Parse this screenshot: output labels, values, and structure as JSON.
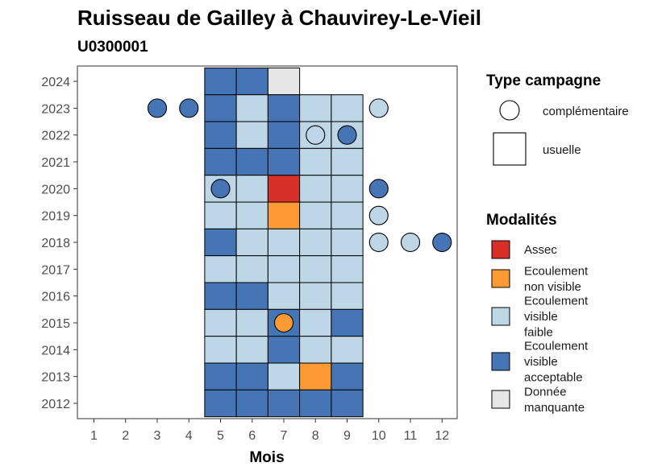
{
  "chart_data": {
    "type": "heatmap",
    "title": "Ruisseau de Gailley à Chauvirey-Le-Vieil",
    "subtitle": "U0300001",
    "xlabel": "Mois",
    "ylabel": "",
    "x_ticks": [
      1,
      2,
      3,
      4,
      5,
      6,
      7,
      8,
      9,
      10,
      11,
      12
    ],
    "y_ticks": [
      2012,
      2013,
      2014,
      2015,
      2016,
      2017,
      2018,
      2019,
      2020,
      2021,
      2022,
      2023,
      2024
    ],
    "legend_type": {
      "title": "Type campagne",
      "items": [
        {
          "key": "complementaire",
          "label": "complémentaire",
          "shape": "circle"
        },
        {
          "key": "usuelle",
          "label": "usuelle",
          "shape": "square"
        }
      ]
    },
    "legend_modalites": {
      "title": "Modalités",
      "items": [
        {
          "key": "assec",
          "lines": [
            "Assec"
          ],
          "color": "#d73027"
        },
        {
          "key": "nv",
          "lines": [
            "Ecoulement",
            "non visible"
          ],
          "color": "#fd9a33"
        },
        {
          "key": "vf",
          "lines": [
            "Ecoulement",
            "visible",
            "faible"
          ],
          "color": "#bdd7e7"
        },
        {
          "key": "va",
          "lines": [
            "Ecoulement",
            "visible",
            "acceptable"
          ],
          "color": "#4575b4"
        },
        {
          "key": "dm",
          "lines": [
            "Donnée",
            "manquante"
          ],
          "color": "#e6e6e6"
        }
      ]
    },
    "usuelle": [
      {
        "year": 2024,
        "month": 5,
        "mod": "va"
      },
      {
        "year": 2024,
        "month": 6,
        "mod": "va"
      },
      {
        "year": 2024,
        "month": 7,
        "mod": "dm"
      },
      {
        "year": 2023,
        "month": 5,
        "mod": "va"
      },
      {
        "year": 2023,
        "month": 6,
        "mod": "vf"
      },
      {
        "year": 2023,
        "month": 7,
        "mod": "va"
      },
      {
        "year": 2023,
        "month": 8,
        "mod": "vf"
      },
      {
        "year": 2023,
        "month": 9,
        "mod": "vf"
      },
      {
        "year": 2022,
        "month": 5,
        "mod": "va"
      },
      {
        "year": 2022,
        "month": 6,
        "mod": "vf"
      },
      {
        "year": 2022,
        "month": 7,
        "mod": "va"
      },
      {
        "year": 2022,
        "month": 8,
        "mod": "vf"
      },
      {
        "year": 2022,
        "month": 9,
        "mod": "vf"
      },
      {
        "year": 2021,
        "month": 5,
        "mod": "va"
      },
      {
        "year": 2021,
        "month": 6,
        "mod": "va"
      },
      {
        "year": 2021,
        "month": 7,
        "mod": "va"
      },
      {
        "year": 2021,
        "month": 8,
        "mod": "vf"
      },
      {
        "year": 2021,
        "month": 9,
        "mod": "vf"
      },
      {
        "year": 2020,
        "month": 5,
        "mod": "vf"
      },
      {
        "year": 2020,
        "month": 6,
        "mod": "vf"
      },
      {
        "year": 2020,
        "month": 7,
        "mod": "assec"
      },
      {
        "year": 2020,
        "month": 8,
        "mod": "vf"
      },
      {
        "year": 2020,
        "month": 9,
        "mod": "vf"
      },
      {
        "year": 2019,
        "month": 5,
        "mod": "vf"
      },
      {
        "year": 2019,
        "month": 6,
        "mod": "vf"
      },
      {
        "year": 2019,
        "month": 7,
        "mod": "nv"
      },
      {
        "year": 2019,
        "month": 8,
        "mod": "vf"
      },
      {
        "year": 2019,
        "month": 9,
        "mod": "vf"
      },
      {
        "year": 2018,
        "month": 5,
        "mod": "va"
      },
      {
        "year": 2018,
        "month": 6,
        "mod": "vf"
      },
      {
        "year": 2018,
        "month": 7,
        "mod": "vf"
      },
      {
        "year": 2018,
        "month": 8,
        "mod": "vf"
      },
      {
        "year": 2018,
        "month": 9,
        "mod": "vf"
      },
      {
        "year": 2017,
        "month": 5,
        "mod": "vf"
      },
      {
        "year": 2017,
        "month": 6,
        "mod": "vf"
      },
      {
        "year": 2017,
        "month": 7,
        "mod": "vf"
      },
      {
        "year": 2017,
        "month": 8,
        "mod": "vf"
      },
      {
        "year": 2017,
        "month": 9,
        "mod": "vf"
      },
      {
        "year": 2016,
        "month": 5,
        "mod": "va"
      },
      {
        "year": 2016,
        "month": 6,
        "mod": "va"
      },
      {
        "year": 2016,
        "month": 7,
        "mod": "vf"
      },
      {
        "year": 2016,
        "month": 8,
        "mod": "vf"
      },
      {
        "year": 2016,
        "month": 9,
        "mod": "vf"
      },
      {
        "year": 2015,
        "month": 5,
        "mod": "vf"
      },
      {
        "year": 2015,
        "month": 6,
        "mod": "vf"
      },
      {
        "year": 2015,
        "month": 7,
        "mod": "va"
      },
      {
        "year": 2015,
        "month": 8,
        "mod": "vf"
      },
      {
        "year": 2015,
        "month": 9,
        "mod": "va"
      },
      {
        "year": 2014,
        "month": 5,
        "mod": "vf"
      },
      {
        "year": 2014,
        "month": 6,
        "mod": "vf"
      },
      {
        "year": 2014,
        "month": 7,
        "mod": "va"
      },
      {
        "year": 2014,
        "month": 8,
        "mod": "vf"
      },
      {
        "year": 2014,
        "month": 9,
        "mod": "vf"
      },
      {
        "year": 2013,
        "month": 5,
        "mod": "va"
      },
      {
        "year": 2013,
        "month": 6,
        "mod": "va"
      },
      {
        "year": 2013,
        "month": 7,
        "mod": "vf"
      },
      {
        "year": 2013,
        "month": 8,
        "mod": "nv"
      },
      {
        "year": 2013,
        "month": 9,
        "mod": "va"
      },
      {
        "year": 2012,
        "month": 5,
        "mod": "va"
      },
      {
        "year": 2012,
        "month": 6,
        "mod": "va"
      },
      {
        "year": 2012,
        "month": 7,
        "mod": "va"
      },
      {
        "year": 2012,
        "month": 8,
        "mod": "va"
      },
      {
        "year": 2012,
        "month": 9,
        "mod": "va"
      }
    ],
    "complementaire": [
      {
        "year": 2023,
        "month": 3,
        "mod": "va"
      },
      {
        "year": 2023,
        "month": 4,
        "mod": "va"
      },
      {
        "year": 2023,
        "month": 10,
        "mod": "vf"
      },
      {
        "year": 2022,
        "month": 8,
        "mod": "vf"
      },
      {
        "year": 2022,
        "month": 9,
        "mod": "va"
      },
      {
        "year": 2020,
        "month": 5,
        "mod": "va"
      },
      {
        "year": 2020,
        "month": 10,
        "mod": "va"
      },
      {
        "year": 2019,
        "month": 10,
        "mod": "vf"
      },
      {
        "year": 2018,
        "month": 10,
        "mod": "vf"
      },
      {
        "year": 2018,
        "month": 11,
        "mod": "vf"
      },
      {
        "year": 2018,
        "month": 12,
        "mod": "va"
      },
      {
        "year": 2015,
        "month": 7,
        "mod": "nv"
      }
    ]
  }
}
